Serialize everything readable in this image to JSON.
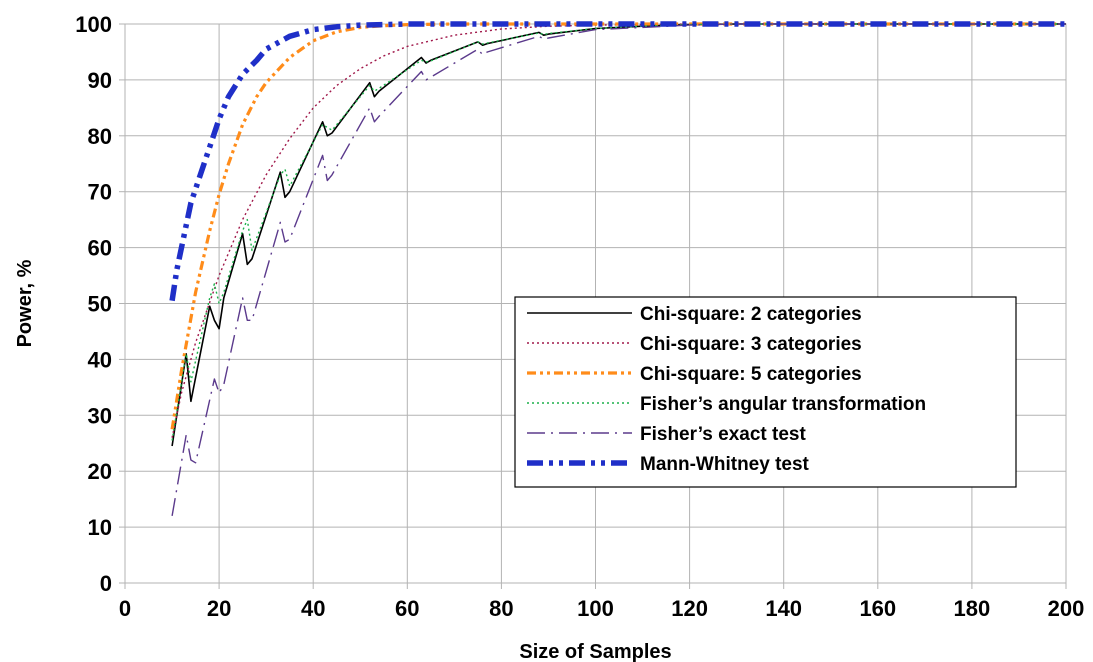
{
  "chart_data": {
    "type": "line",
    "title": "",
    "xlabel": "Size of Samples",
    "ylabel": "Power, %",
    "xlim": [
      0,
      200
    ],
    "ylim": [
      0,
      100
    ],
    "xticks": [
      0,
      20,
      40,
      60,
      80,
      100,
      120,
      140,
      160,
      180,
      200
    ],
    "yticks": [
      0,
      10,
      20,
      30,
      40,
      50,
      60,
      70,
      80,
      90,
      100
    ],
    "grid": true,
    "legend_position": "center-right",
    "series": [
      {
        "name": "Chi-square: 2 categories",
        "color": "#000000",
        "dash": "solid",
        "x": [
          10,
          13,
          14,
          18,
          19,
          20,
          21,
          25,
          26,
          27,
          33,
          34,
          35,
          42,
          43,
          44,
          52,
          53,
          54,
          63,
          64,
          65,
          75,
          76,
          77,
          88,
          89,
          90,
          100,
          110,
          120,
          130,
          140,
          160,
          180,
          200
        ],
        "y": [
          24.5,
          41,
          32.5,
          49.5,
          47,
          45.5,
          51,
          62.5,
          57,
          58,
          73.5,
          69,
          70,
          82.5,
          80,
          80.5,
          89.5,
          87,
          88,
          94,
          93,
          93.5,
          96.8,
          96.2,
          96.5,
          98.5,
          98,
          98.2,
          99.2,
          99.6,
          99.9,
          100,
          100,
          100,
          100,
          100
        ]
      },
      {
        "name": "Chi-square: 3 categories",
        "color": "#a0184a",
        "dash": "dotted",
        "x": [
          10,
          12,
          15,
          20,
          25,
          30,
          35,
          40,
          45,
          50,
          55,
          60,
          70,
          80,
          90,
          100,
          110,
          120,
          140,
          160,
          200
        ],
        "y": [
          26,
          34,
          43,
          55,
          65,
          73,
          79.5,
          85,
          89,
          92,
          94.3,
          96,
          98,
          99.1,
          99.6,
          99.8,
          99.9,
          100,
          100,
          100,
          100
        ]
      },
      {
        "name": "Chi-square: 5 categories",
        "color": "#ff8c1a",
        "dash": "dash-dot-dot",
        "x": [
          10,
          12,
          15,
          18,
          20,
          22,
          25,
          28,
          30,
          35,
          40,
          45,
          50,
          55,
          60,
          70,
          80,
          100,
          120,
          200
        ],
        "y": [
          27.5,
          38,
          52,
          63,
          69.5,
          75,
          82,
          87,
          89.5,
          94,
          97,
          98.6,
          99.4,
          99.7,
          99.9,
          100,
          100,
          100,
          100,
          100
        ]
      },
      {
        "name": "Fisher’s angular transformation",
        "color": "#1bb04a",
        "dash": "dotted",
        "x": [
          10,
          13,
          14,
          18,
          19,
          20,
          21,
          25,
          26,
          27,
          33,
          34,
          35,
          42,
          43,
          44,
          52,
          53,
          54,
          63,
          64,
          65,
          75,
          76,
          77,
          88,
          89,
          90,
          100,
          110,
          120,
          130,
          140,
          160,
          180,
          200
        ],
        "y": [
          25.5,
          41,
          36,
          51,
          53.5,
          50,
          52,
          63,
          65,
          59.5,
          73,
          74,
          71,
          82,
          81.5,
          81,
          89,
          88,
          88.5,
          93.5,
          93.2,
          93.4,
          96.8,
          96.4,
          96.6,
          98.4,
          98.1,
          98.3,
          99.2,
          99.6,
          99.9,
          100,
          100,
          100,
          100,
          100
        ]
      },
      {
        "name": "Fisher’s exact test",
        "color": "#5b3a8c",
        "dash": "dash-dot",
        "x": [
          10,
          13,
          14,
          15,
          19,
          20,
          21,
          25,
          26,
          27,
          33,
          34,
          35,
          42,
          43,
          44,
          52,
          53,
          54,
          63,
          64,
          65,
          75,
          76,
          77,
          88,
          89,
          90,
          100,
          110,
          120,
          130,
          140,
          160,
          180,
          200
        ],
        "y": [
          12,
          26.5,
          22,
          21.5,
          36.5,
          34,
          35.5,
          51,
          47,
          47,
          64.5,
          61,
          61.5,
          76.5,
          72,
          73,
          85,
          82.5,
          83.5,
          91.5,
          90,
          90.5,
          95.5,
          94.5,
          95,
          97.8,
          97.3,
          97.5,
          99,
          99.4,
          99.8,
          100,
          100,
          100,
          100,
          100
        ]
      },
      {
        "name": "Mann-Whitney test",
        "color": "#1f2fc8",
        "dash": "dash-dot-dot-thick",
        "x": [
          10,
          11,
          12,
          14,
          16,
          18,
          20,
          22,
          25,
          28,
          30,
          35,
          40,
          45,
          50,
          55,
          60,
          70,
          80,
          100,
          120,
          200
        ],
        "y": [
          50.5,
          56,
          60,
          68,
          73,
          78,
          83,
          87,
          91,
          93.5,
          95.5,
          97.8,
          99,
          99.5,
          99.8,
          99.9,
          100,
          100,
          100,
          100,
          100,
          100
        ]
      }
    ]
  }
}
